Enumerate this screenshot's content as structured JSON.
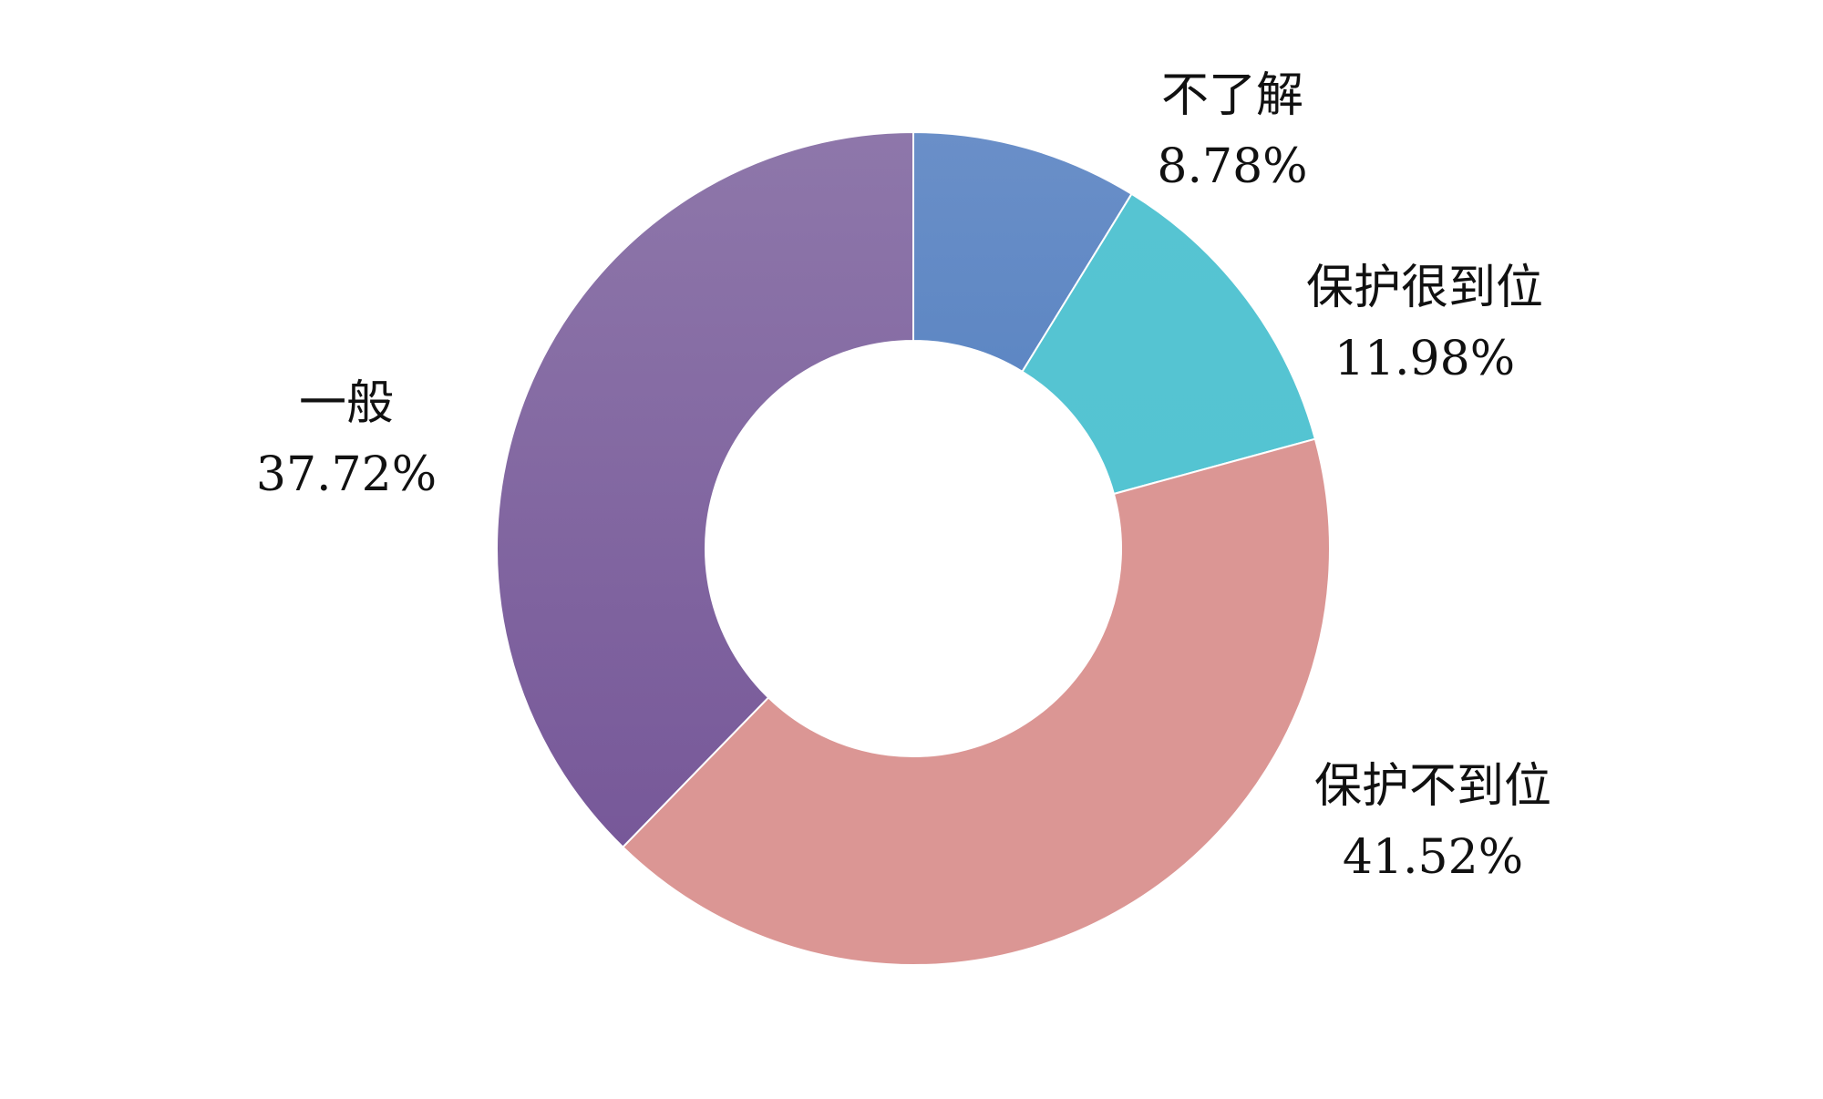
{
  "chart_data": {
    "type": "pie",
    "donut": true,
    "start": "top",
    "direction": "clockwise",
    "title": "",
    "slices": [
      {
        "label": "不了解",
        "value": 8.78,
        "value_label": "8.78%",
        "color_top": "#6a8fc8",
        "color_bottom": "#3e72b8"
      },
      {
        "label": "保护很到位",
        "value": 11.98,
        "value_label": "11.98%",
        "color_top": "#56c4d2",
        "color_bottom": "#52c3d1"
      },
      {
        "label": "保护不到位",
        "value": 41.52,
        "value_label": "41.52%",
        "color_top": "#db9694",
        "color_bottom": "#db9694"
      },
      {
        "label": "一般",
        "value": 37.72,
        "value_label": "37.72%",
        "color_top": "#8e77aa",
        "color_bottom": "#735396"
      }
    ]
  }
}
